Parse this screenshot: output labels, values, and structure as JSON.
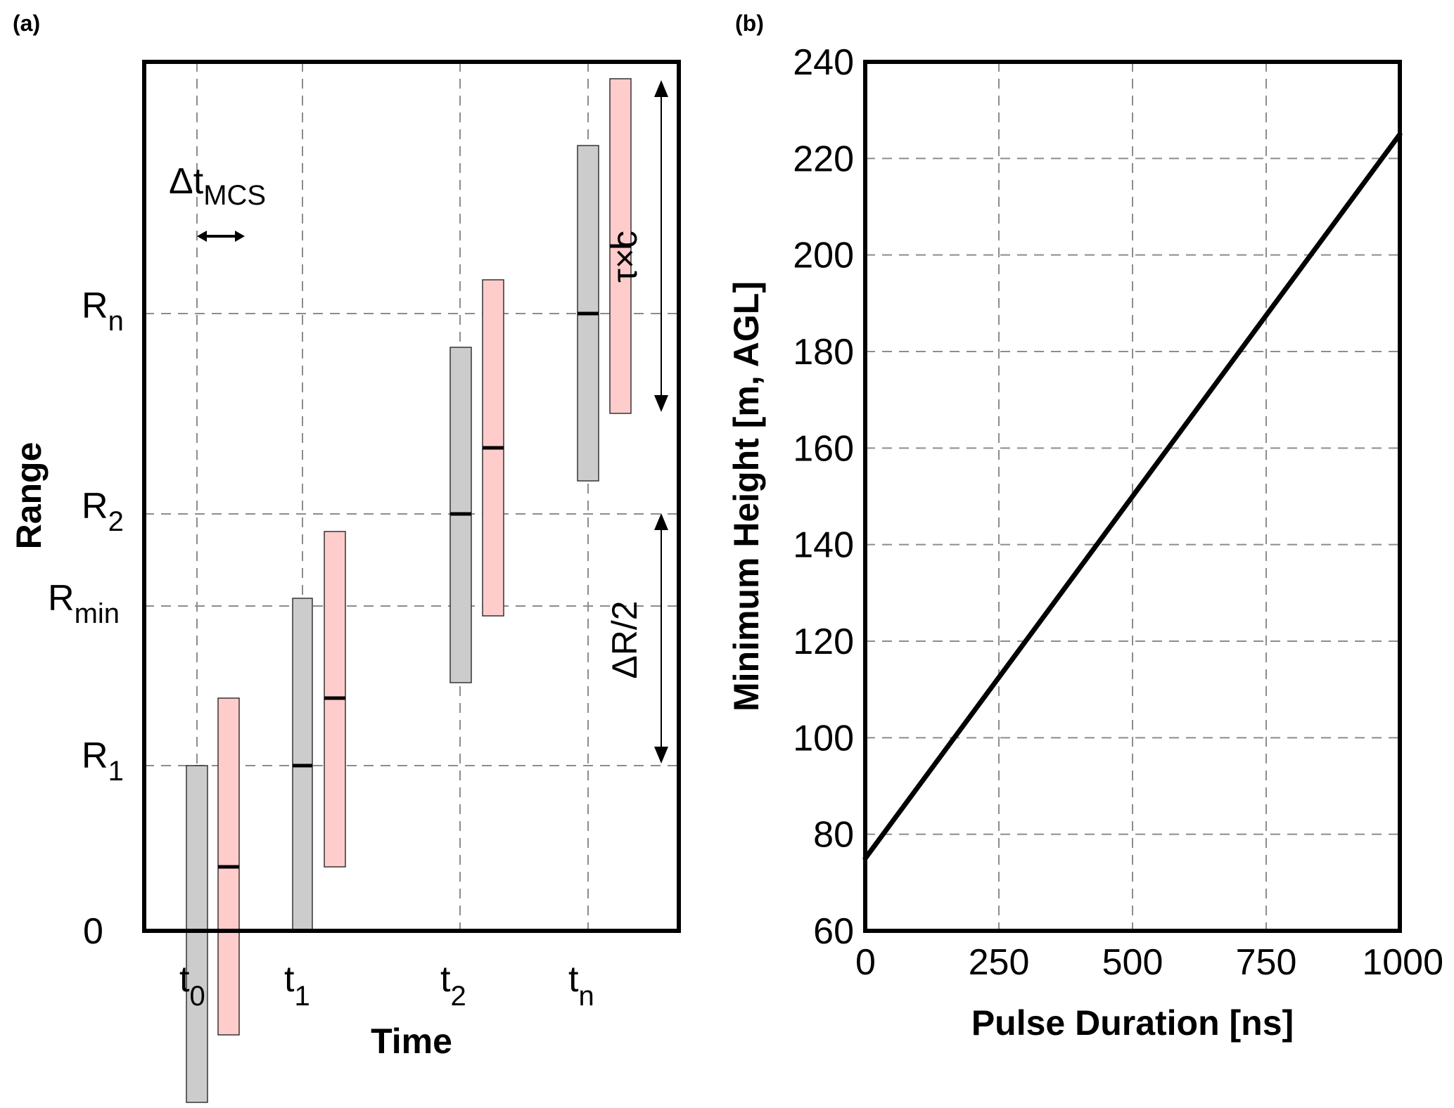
{
  "chart_data": [
    {
      "type": "diagram",
      "panel_label": "(a)",
      "xlabel": "Time",
      "ylabel": "Range",
      "x_ticks": [
        {
          "base": "t",
          "sub": "0"
        },
        {
          "base": "t",
          "sub": "1"
        },
        {
          "base": "t",
          "sub": "2"
        },
        {
          "base": "t",
          "sub": "n"
        }
      ],
      "y_ticks": [
        {
          "base": "0",
          "sub": ""
        },
        {
          "base": "R",
          "sub": "1"
        },
        {
          "base": "R",
          "sub": "min"
        },
        {
          "base": "R",
          "sub": "2"
        },
        {
          "base": "R",
          "sub": "n"
        }
      ],
      "annotations": {
        "dt_base": "Δt",
        "dt_sub": "MCS",
        "tau_c": "τ×c",
        "delta_r": "ΔR/2"
      },
      "colors": {
        "gray_bar": "#cccccc",
        "pink_bar": "#ffcccc",
        "bar_edge": "#333333"
      }
    },
    {
      "type": "line",
      "panel_label": "(b)",
      "xlabel": "Pulse Duration [ns]",
      "ylabel": "Minimum Height [m, AGL]",
      "xlim": [
        0,
        1000
      ],
      "ylim": [
        60,
        240
      ],
      "xticks": [
        0,
        250,
        500,
        750,
        1000
      ],
      "yticks": [
        60,
        80,
        100,
        120,
        140,
        160,
        180,
        200,
        220,
        240
      ],
      "grid": true,
      "series": [
        {
          "x": [
            0,
            1000
          ],
          "y": [
            75,
            225
          ]
        }
      ]
    }
  ]
}
